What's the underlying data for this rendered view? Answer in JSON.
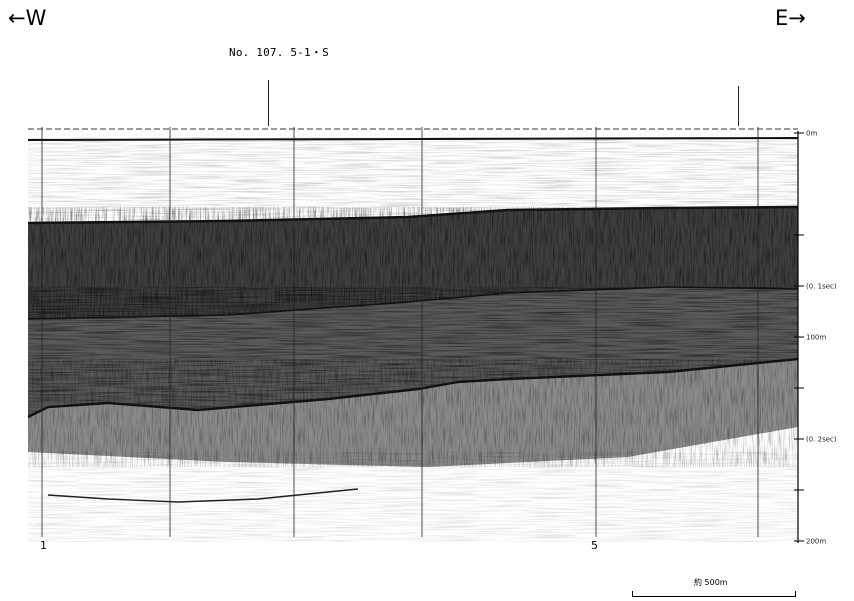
{
  "header": {
    "west_label": "←W",
    "east_label": "E→",
    "line_label": "No. 107. 5-1・S"
  },
  "depth_scale": {
    "ticks": [
      {
        "label": "0m",
        "depth_m": 0
      },
      {
        "label": "",
        "depth_m": 50
      },
      {
        "label": "(0. 1sec)",
        "depth_m": 75
      },
      {
        "label": "100m",
        "depth_m": 100
      },
      {
        "label": "",
        "depth_m": 125
      },
      {
        "label": "(0. 2sec)",
        "depth_m": 150
      },
      {
        "label": "",
        "depth_m": 175
      },
      {
        "label": "200m",
        "depth_m": 200
      }
    ],
    "max_depth_m": 200
  },
  "fix_marks": {
    "left": "1",
    "right": "5"
  },
  "scale": {
    "label": "約 500m"
  },
  "colors": {
    "ink": "#111111",
    "background": "#ffffff"
  }
}
